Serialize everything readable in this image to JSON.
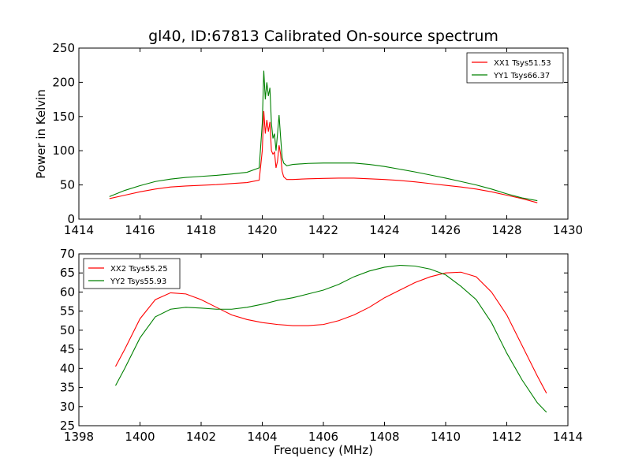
{
  "chart_data": [
    {
      "type": "line",
      "title": "gl40, ID:67813 Calibrated On-source spectrum",
      "xlabel": "",
      "ylabel": "Power in Kelvin",
      "xlim": [
        1414,
        1430
      ],
      "ylim": [
        0,
        250
      ],
      "xticks": [
        "1414",
        "1416",
        "1418",
        "1420",
        "1422",
        "1424",
        "1426",
        "1428",
        "1430"
      ],
      "yticks": [
        "0",
        "50",
        "100",
        "150",
        "200",
        "250"
      ],
      "legend_position": "top-right",
      "series": [
        {
          "name": "XX1 Tsys51.53",
          "color": "#ff0000",
          "x": [
            1415.0,
            1415.5,
            1416.0,
            1416.5,
            1417.0,
            1417.5,
            1418.0,
            1418.5,
            1419.0,
            1419.5,
            1419.9,
            1420.0,
            1420.05,
            1420.1,
            1420.15,
            1420.2,
            1420.25,
            1420.3,
            1420.35,
            1420.4,
            1420.45,
            1420.5,
            1420.55,
            1420.6,
            1420.65,
            1420.7,
            1420.8,
            1421.0,
            1421.5,
            1422.0,
            1422.5,
            1423.0,
            1423.5,
            1424.0,
            1424.5,
            1425.0,
            1425.5,
            1426.0,
            1426.5,
            1427.0,
            1427.5,
            1428.0,
            1428.5,
            1429.0
          ],
          "values": [
            30,
            35,
            40,
            44,
            47,
            48.5,
            49.5,
            50.5,
            52,
            53.5,
            57,
            100,
            158,
            125,
            145,
            128,
            142,
            100,
            95,
            98,
            75,
            85,
            108,
            95,
            70,
            62,
            58,
            58,
            59,
            59.5,
            60,
            60,
            59,
            58,
            56.5,
            54.5,
            52,
            49.5,
            47,
            44,
            40,
            35,
            30,
            24
          ]
        },
        {
          "name": "YY1 Tsys66.37",
          "color": "#008000",
          "x": [
            1415.0,
            1415.5,
            1416.0,
            1416.5,
            1417.0,
            1417.5,
            1418.0,
            1418.5,
            1419.0,
            1419.5,
            1419.9,
            1420.0,
            1420.05,
            1420.1,
            1420.15,
            1420.2,
            1420.25,
            1420.3,
            1420.35,
            1420.4,
            1420.45,
            1420.5,
            1420.55,
            1420.6,
            1420.65,
            1420.7,
            1420.8,
            1421.0,
            1421.5,
            1422.0,
            1422.5,
            1423.0,
            1423.5,
            1424.0,
            1424.5,
            1425.0,
            1425.5,
            1426.0,
            1426.5,
            1427.0,
            1427.5,
            1428.0,
            1428.5,
            1429.0
          ],
          "values": [
            33,
            42,
            49,
            55,
            58.5,
            61,
            62.5,
            64,
            66,
            68.5,
            75,
            140,
            217,
            175,
            200,
            180,
            192,
            140,
            118,
            125,
            100,
            125,
            152,
            120,
            90,
            82,
            78,
            80,
            81.5,
            82,
            82,
            82,
            80,
            77,
            73,
            69,
            64.5,
            60,
            55,
            50,
            44,
            37,
            31,
            27
          ]
        }
      ]
    },
    {
      "type": "line",
      "title": "",
      "xlabel": "Frequency (MHz)",
      "ylabel": "",
      "xlim": [
        1398,
        1414
      ],
      "ylim": [
        25,
        70
      ],
      "xticks": [
        "1398",
        "1400",
        "1402",
        "1404",
        "1406",
        "1408",
        "1410",
        "1412",
        "1414"
      ],
      "yticks": [
        "25",
        "30",
        "35",
        "40",
        "45",
        "50",
        "55",
        "60",
        "65",
        "70"
      ],
      "legend_position": "top-left",
      "series": [
        {
          "name": "XX2 Tsys55.25",
          "color": "#ff0000",
          "x": [
            1399.2,
            1399.5,
            1400.0,
            1400.5,
            1401.0,
            1401.5,
            1402.0,
            1402.5,
            1403.0,
            1403.5,
            1404.0,
            1404.5,
            1405.0,
            1405.5,
            1406.0,
            1406.5,
            1407.0,
            1407.5,
            1408.0,
            1408.5,
            1409.0,
            1409.5,
            1410.0,
            1410.5,
            1411.0,
            1411.5,
            1412.0,
            1412.5,
            1413.0,
            1413.3
          ],
          "values": [
            40.5,
            45,
            53,
            58,
            59.8,
            59.5,
            58,
            56,
            54,
            52.8,
            52,
            51.5,
            51.2,
            51.2,
            51.5,
            52.5,
            54,
            56,
            58.5,
            60.5,
            62.5,
            64,
            65,
            65.2,
            64,
            60,
            54,
            46,
            38,
            33.5
          ]
        },
        {
          "name": "YY2 Tsys55.93",
          "color": "#008000",
          "x": [
            1399.2,
            1399.5,
            1400.0,
            1400.5,
            1401.0,
            1401.5,
            1402.0,
            1402.5,
            1403.0,
            1403.5,
            1404.0,
            1404.5,
            1405.0,
            1405.5,
            1406.0,
            1406.5,
            1407.0,
            1407.5,
            1408.0,
            1408.5,
            1409.0,
            1409.5,
            1410.0,
            1410.5,
            1411.0,
            1411.5,
            1412.0,
            1412.5,
            1413.0,
            1413.3
          ],
          "values": [
            35.5,
            40,
            48,
            53.5,
            55.5,
            56,
            55.8,
            55.5,
            55.5,
            56,
            56.8,
            57.8,
            58.5,
            59.5,
            60.5,
            62,
            64,
            65.5,
            66.5,
            67,
            66.8,
            66,
            64.5,
            61.5,
            58,
            52,
            44,
            37,
            31,
            28.5
          ]
        }
      ]
    }
  ]
}
